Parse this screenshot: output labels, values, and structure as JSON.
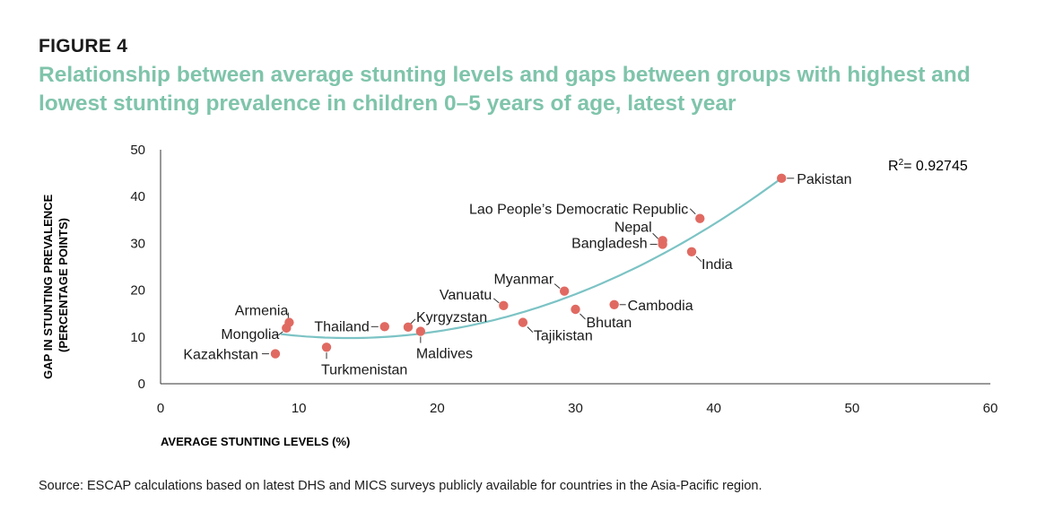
{
  "figure": {
    "label": "FIGURE 4",
    "title": "Relationship between average stunting levels and gaps between groups with highest and lowest stunting prevalence in children 0–5 years of age, latest year",
    "source": "Source: ESCAP calculations based on latest DHS and MICS surveys publicly available for countries in the Asia-Pacific region."
  },
  "colors": {
    "title": "#7fc4ab",
    "point": "#e06a62",
    "trendline": "#7cc3c5",
    "axis": "#333333",
    "text": "#1a1a1a"
  },
  "chart_data": {
    "type": "scatter",
    "xlabel": "AVERAGE STUNTING LEVELS (%)",
    "ylabel_lines": [
      "GAP IN STUNTING PREVALENCE",
      "(PERCENTAGE POINTS)"
    ],
    "xlim": [
      0,
      60
    ],
    "ylim": [
      0,
      50
    ],
    "xticks": [
      0,
      10,
      20,
      30,
      40,
      50,
      60
    ],
    "yticks": [
      0,
      10,
      20,
      30,
      40,
      50
    ],
    "grid": false,
    "legend": "none",
    "annotation": {
      "prefix": "R",
      "sup": "2",
      "value": "= 0.92745"
    },
    "trendline": {
      "type": "quadratic",
      "x_range": [
        8.7,
        45
      ]
    },
    "points": [
      {
        "name": "Pakistan",
        "x": 44.9,
        "y": 43.9
      },
      {
        "name": "Lao People’s Democratic Republic",
        "x": 39.0,
        "y": 35.3
      },
      {
        "name": "Nepal",
        "x": 36.3,
        "y": 30.6
      },
      {
        "name": "Bangladesh",
        "x": 36.3,
        "y": 29.8
      },
      {
        "name": "India",
        "x": 38.4,
        "y": 28.2
      },
      {
        "name": "Myanmar",
        "x": 29.2,
        "y": 19.8
      },
      {
        "name": "Cambodia",
        "x": 32.8,
        "y": 16.9
      },
      {
        "name": "Bhutan",
        "x": 30.0,
        "y": 15.9
      },
      {
        "name": "Vanuatu",
        "x": 24.8,
        "y": 16.7
      },
      {
        "name": "Tajikistan",
        "x": 26.2,
        "y": 13.1
      },
      {
        "name": "Kyrgyzstan",
        "x": 17.9,
        "y": 12.1
      },
      {
        "name": "Maldives",
        "x": 18.8,
        "y": 11.2
      },
      {
        "name": "Thailand",
        "x": 16.2,
        "y": 12.2
      },
      {
        "name": "Armenia",
        "x": 9.3,
        "y": 13.1
      },
      {
        "name": "Mongolia",
        "x": 9.1,
        "y": 11.9
      },
      {
        "name": "Turkmenistan",
        "x": 12.0,
        "y": 7.8
      },
      {
        "name": "Kazakhstan",
        "x": 8.3,
        "y": 6.4
      }
    ]
  }
}
